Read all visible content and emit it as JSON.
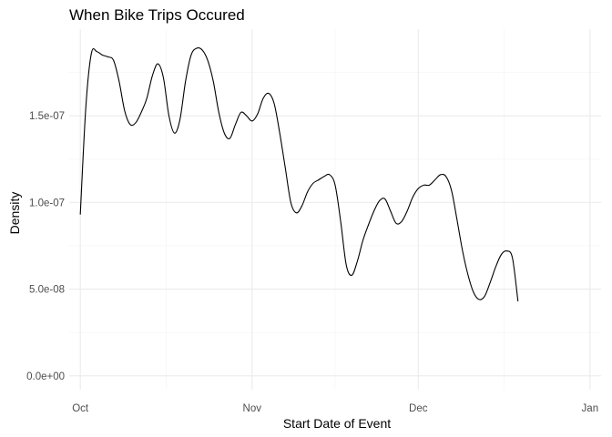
{
  "chart_data": {
    "type": "line",
    "title": "When Bike Trips Occured",
    "xlabel": "Start Date of Event",
    "ylabel": "Density",
    "x_ticks": [
      {
        "date": "2019-10-01",
        "label": "Oct"
      },
      {
        "date": "2019-11-01",
        "label": "Nov"
      },
      {
        "date": "2019-12-01",
        "label": "Dec"
      },
      {
        "date": "2020-01-01",
        "label": "Jan"
      }
    ],
    "y_ticks": [
      {
        "value": 0,
        "label": "0.0e+00"
      },
      {
        "value": 5e-08,
        "label": "5.0e-08"
      },
      {
        "value": 1e-07,
        "label": "1.0e-07"
      },
      {
        "value": 1.5e-07,
        "label": "1.5e-07"
      }
    ],
    "xlim": [
      "2019-09-29",
      "2020-01-03"
    ],
    "ylim": [
      -8e-09,
      2e-07
    ],
    "grid": true,
    "series": [
      {
        "points": [
          [
            "2019-10-01",
            9.3e-08
          ],
          [
            "2019-10-02",
            1.55e-07
          ],
          [
            "2019-10-03",
            1.86e-07
          ],
          [
            "2019-10-04",
            1.87e-07
          ],
          [
            "2019-10-05",
            1.85e-07
          ],
          [
            "2019-10-06",
            1.84e-07
          ],
          [
            "2019-10-07",
            1.82e-07
          ],
          [
            "2019-10-08",
            1.7e-07
          ],
          [
            "2019-10-09",
            1.53e-07
          ],
          [
            "2019-10-10",
            1.45e-07
          ],
          [
            "2019-10-11",
            1.46e-07
          ],
          [
            "2019-10-12",
            1.52e-07
          ],
          [
            "2019-10-13",
            1.6e-07
          ],
          [
            "2019-10-14",
            1.73e-07
          ],
          [
            "2019-10-15",
            1.8e-07
          ],
          [
            "2019-10-16",
            1.72e-07
          ],
          [
            "2019-10-17",
            1.5e-07
          ],
          [
            "2019-10-18",
            1.4e-07
          ],
          [
            "2019-10-19",
            1.48e-07
          ],
          [
            "2019-10-20",
            1.7e-07
          ],
          [
            "2019-10-21",
            1.85e-07
          ],
          [
            "2019-10-22",
            1.89e-07
          ],
          [
            "2019-10-23",
            1.88e-07
          ],
          [
            "2019-10-24",
            1.82e-07
          ],
          [
            "2019-10-25",
            1.7e-07
          ],
          [
            "2019-10-26",
            1.52e-07
          ],
          [
            "2019-10-27",
            1.4e-07
          ],
          [
            "2019-10-28",
            1.37e-07
          ],
          [
            "2019-10-29",
            1.45e-07
          ],
          [
            "2019-10-30",
            1.52e-07
          ],
          [
            "2019-10-31",
            1.5e-07
          ],
          [
            "2019-11-01",
            1.47e-07
          ],
          [
            "2019-11-02",
            1.51e-07
          ],
          [
            "2019-11-03",
            1.6e-07
          ],
          [
            "2019-11-04",
            1.63e-07
          ],
          [
            "2019-11-05",
            1.57e-07
          ],
          [
            "2019-11-06",
            1.4e-07
          ],
          [
            "2019-11-07",
            1.2e-07
          ],
          [
            "2019-11-08",
            1e-07
          ],
          [
            "2019-11-09",
            9.4e-08
          ],
          [
            "2019-11-10",
            9.8e-08
          ],
          [
            "2019-11-11",
            1.06e-07
          ],
          [
            "2019-11-12",
            1.11e-07
          ],
          [
            "2019-11-13",
            1.13e-07
          ],
          [
            "2019-11-14",
            1.15e-07
          ],
          [
            "2019-11-15",
            1.16e-07
          ],
          [
            "2019-11-16",
            1.1e-07
          ],
          [
            "2019-11-17",
            8.9e-08
          ],
          [
            "2019-11-18",
            6.4e-08
          ],
          [
            "2019-11-19",
            5.8e-08
          ],
          [
            "2019-11-20",
            6.6e-08
          ],
          [
            "2019-11-21",
            7.8e-08
          ],
          [
            "2019-11-22",
            8.7e-08
          ],
          [
            "2019-11-23",
            9.5e-08
          ],
          [
            "2019-11-24",
            1.01e-07
          ],
          [
            "2019-11-25",
            1.02e-07
          ],
          [
            "2019-11-26",
            9.5e-08
          ],
          [
            "2019-11-27",
            8.8e-08
          ],
          [
            "2019-11-28",
            8.9e-08
          ],
          [
            "2019-11-29",
            9.5e-08
          ],
          [
            "2019-11-30",
            1.03e-07
          ],
          [
            "2019-12-01",
            1.08e-07
          ],
          [
            "2019-12-02",
            1.1e-07
          ],
          [
            "2019-12-03",
            1.1e-07
          ],
          [
            "2019-12-04",
            1.13e-07
          ],
          [
            "2019-12-05",
            1.16e-07
          ],
          [
            "2019-12-06",
            1.15e-07
          ],
          [
            "2019-12-07",
            1.07e-07
          ],
          [
            "2019-12-08",
            9e-08
          ],
          [
            "2019-12-09",
            7.2e-08
          ],
          [
            "2019-12-10",
            5.8e-08
          ],
          [
            "2019-12-11",
            4.8e-08
          ],
          [
            "2019-12-12",
            4.4e-08
          ],
          [
            "2019-12-13",
            4.6e-08
          ],
          [
            "2019-12-14",
            5.4e-08
          ],
          [
            "2019-12-15",
            6.3e-08
          ],
          [
            "2019-12-16",
            7e-08
          ],
          [
            "2019-12-17",
            7.2e-08
          ],
          [
            "2019-12-18",
            6.8e-08
          ],
          [
            "2019-12-19",
            4.3e-08
          ]
        ]
      }
    ]
  }
}
